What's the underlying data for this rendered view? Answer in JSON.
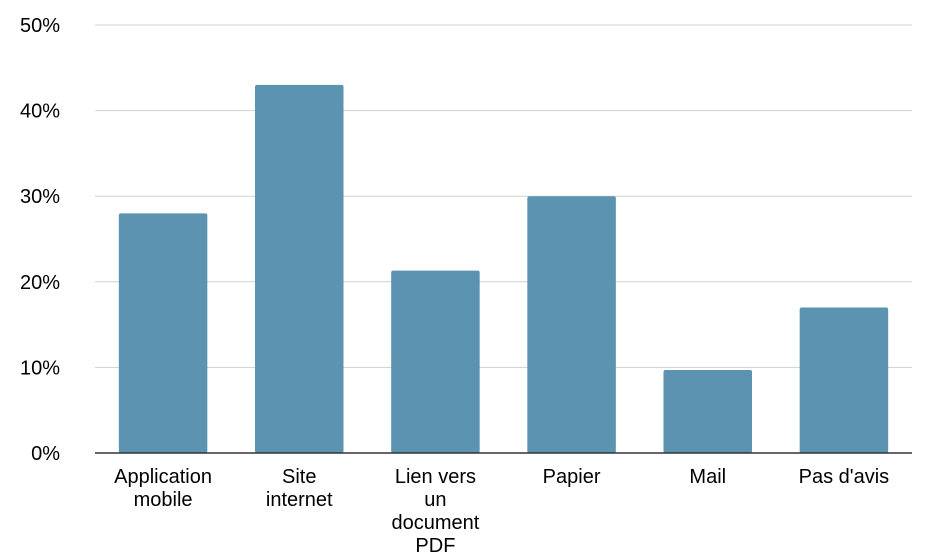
{
  "chart_data": {
    "type": "bar",
    "categories": [
      [
        "Application",
        "mobile"
      ],
      [
        "Site",
        "internet"
      ],
      [
        "Lien vers",
        "un",
        "document",
        "PDF"
      ],
      [
        "Papier"
      ],
      [
        "Mail"
      ],
      [
        "Pas d'avis"
      ]
    ],
    "values": [
      28,
      43,
      21.3,
      30,
      9.7,
      17
    ],
    "ylim": [
      0,
      50
    ],
    "yticks": [
      0,
      10,
      20,
      30,
      40,
      50
    ],
    "ytick_labels": [
      "0%",
      "10%",
      "20%",
      "30%",
      "40%",
      "50%"
    ],
    "grid": true,
    "bar_color": "#5b93b0",
    "title": "",
    "xlabel": "",
    "ylabel": ""
  }
}
